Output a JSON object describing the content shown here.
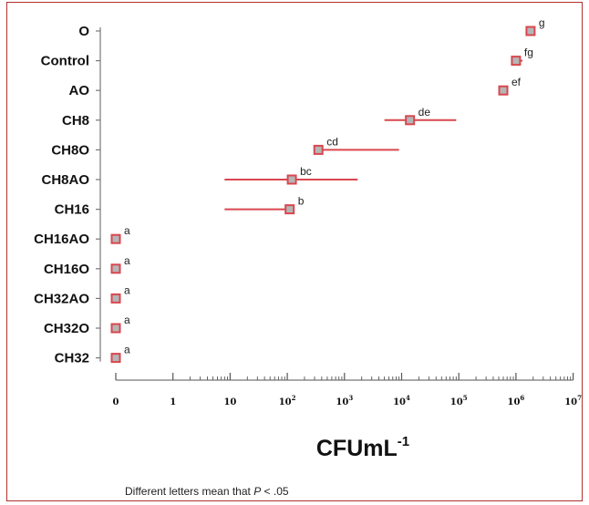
{
  "chart_data": {
    "type": "scatter",
    "orientation": "horizontal",
    "scale": "log",
    "xlabel_main": "CFUmL",
    "xlabel_exponent": "-1",
    "x_ticks": [
      {
        "base": "0",
        "exp": ""
      },
      {
        "base": "1",
        "exp": ""
      },
      {
        "base": "10",
        "exp": ""
      },
      {
        "base": "10",
        "exp": "2"
      },
      {
        "base": "10",
        "exp": "3"
      },
      {
        "base": "10",
        "exp": "4"
      },
      {
        "base": "10",
        "exp": "5"
      },
      {
        "base": "10",
        "exp": "6"
      },
      {
        "base": "10",
        "exp": "7"
      }
    ],
    "xlim": [
      0,
      10000000
    ],
    "marker_color": "#d9474f",
    "marker_fill": "#b5b5b5",
    "errorbar_color": "#d9474f",
    "series": [
      {
        "category": "O",
        "value": 1800000,
        "err_low": null,
        "err_high": null,
        "letter": "g"
      },
      {
        "category": "Control",
        "value": 1000000,
        "err_low": null,
        "err_high": 1300000,
        "letter": "fg"
      },
      {
        "category": "AO",
        "value": 600000,
        "err_low": null,
        "err_high": null,
        "letter": "ef"
      },
      {
        "category": "CH8",
        "value": 14000,
        "err_low": 5000,
        "err_high": 90000,
        "letter": "de"
      },
      {
        "category": "CH8O",
        "value": 350,
        "err_low": null,
        "err_high": 9000,
        "letter": "cd"
      },
      {
        "category": "CH8AO",
        "value": 120,
        "err_low": 8,
        "err_high": 1700,
        "letter": "bc"
      },
      {
        "category": "CH16",
        "value": 110,
        "err_low": 8,
        "err_high": null,
        "letter": "b"
      },
      {
        "category": "CH16AO",
        "value": 0,
        "err_low": null,
        "err_high": null,
        "letter": "a"
      },
      {
        "category": "CH16O",
        "value": 0,
        "err_low": null,
        "err_high": null,
        "letter": "a"
      },
      {
        "category": "CH32AO",
        "value": 0,
        "err_low": null,
        "err_high": null,
        "letter": "a"
      },
      {
        "category": "CH32O",
        "value": 0,
        "err_low": null,
        "err_high": null,
        "letter": "a"
      },
      {
        "category": "CH32",
        "value": 0,
        "err_low": null,
        "err_high": null,
        "letter": "a"
      }
    ],
    "note_prefix": "Different letters mean that ",
    "note_italic": "P",
    "note_suffix": " < .05"
  }
}
